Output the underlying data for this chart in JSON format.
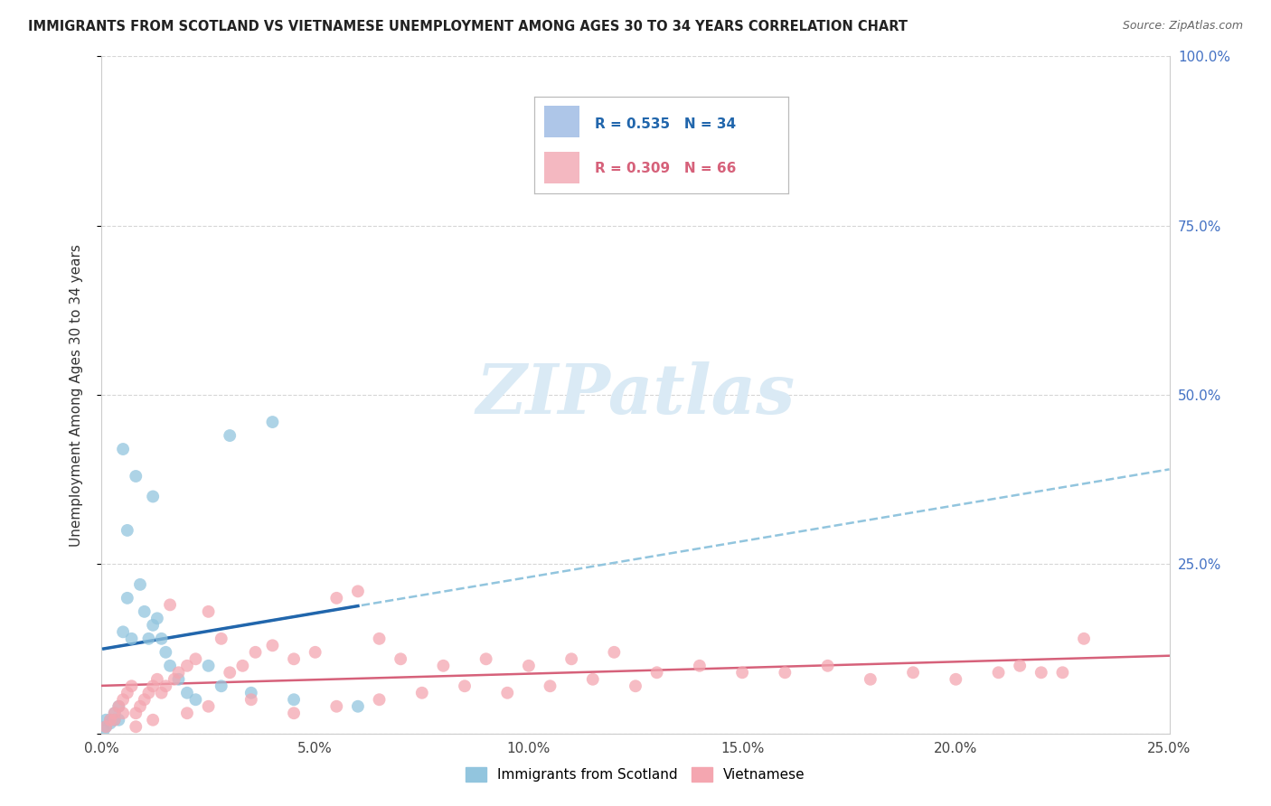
{
  "title": "IMMIGRANTS FROM SCOTLAND VS VIETNAMESE UNEMPLOYMENT AMONG AGES 30 TO 34 YEARS CORRELATION CHART",
  "source": "Source: ZipAtlas.com",
  "xlabel_bottom": "Immigrants from Scotland",
  "ylabel": "Unemployment Among Ages 30 to 34 years",
  "xlim": [
    0.0,
    0.25
  ],
  "ylim": [
    0.0,
    1.0
  ],
  "xticks": [
    0.0,
    0.05,
    0.1,
    0.15,
    0.2,
    0.25
  ],
  "xtick_labels": [
    "0.0%",
    "5.0%",
    "10.0%",
    "15.0%",
    "20.0%",
    "25.0%"
  ],
  "yticks": [
    0.0,
    0.25,
    0.5,
    0.75,
    1.0
  ],
  "ytick_labels_left": [
    "0.0%",
    "25.0%",
    "50.0%",
    "75.0%",
    "100.0%"
  ],
  "ytick_labels_right": [
    "",
    "25.0%",
    "50.0%",
    "75.0%",
    "100.0%"
  ],
  "scotland_color": "#92c5de",
  "scottish_line_color": "#2166ac",
  "scottish_line_dashed_color": "#92c5de",
  "vietnamese_color": "#f4a6b0",
  "vietnamese_line_color": "#d6617a",
  "R_scotland": 0.535,
  "N_scotland": 34,
  "R_vietnamese": 0.309,
  "N_vietnamese": 66,
  "watermark": "ZIPatlas",
  "watermark_color": "#daeaf5",
  "scotland_points_x": [
    0.0005,
    0.001,
    0.001,
    0.002,
    0.002,
    0.003,
    0.003,
    0.004,
    0.004,
    0.005,
    0.005,
    0.006,
    0.006,
    0.007,
    0.008,
    0.009,
    0.01,
    0.011,
    0.012,
    0.013,
    0.014,
    0.015,
    0.016,
    0.018,
    0.02,
    0.022,
    0.025,
    0.028,
    0.03,
    0.035,
    0.04,
    0.045,
    0.06,
    0.012
  ],
  "scotland_points_y": [
    0.005,
    0.01,
    0.02,
    0.02,
    0.015,
    0.03,
    0.02,
    0.02,
    0.04,
    0.42,
    0.15,
    0.2,
    0.3,
    0.14,
    0.38,
    0.22,
    0.18,
    0.14,
    0.16,
    0.17,
    0.14,
    0.12,
    0.1,
    0.08,
    0.06,
    0.05,
    0.1,
    0.07,
    0.44,
    0.06,
    0.46,
    0.05,
    0.04,
    0.35
  ],
  "vietnamese_points_x": [
    0.001,
    0.002,
    0.003,
    0.004,
    0.005,
    0.006,
    0.007,
    0.008,
    0.009,
    0.01,
    0.011,
    0.012,
    0.013,
    0.014,
    0.015,
    0.016,
    0.017,
    0.018,
    0.02,
    0.022,
    0.025,
    0.028,
    0.03,
    0.033,
    0.036,
    0.04,
    0.045,
    0.05,
    0.055,
    0.06,
    0.065,
    0.07,
    0.08,
    0.09,
    0.1,
    0.11,
    0.12,
    0.13,
    0.14,
    0.15,
    0.16,
    0.17,
    0.18,
    0.19,
    0.2,
    0.21,
    0.215,
    0.22,
    0.225,
    0.23,
    0.003,
    0.005,
    0.008,
    0.012,
    0.02,
    0.025,
    0.035,
    0.045,
    0.055,
    0.065,
    0.075,
    0.085,
    0.095,
    0.105,
    0.115,
    0.125
  ],
  "vietnamese_points_y": [
    0.01,
    0.02,
    0.03,
    0.04,
    0.05,
    0.06,
    0.07,
    0.03,
    0.04,
    0.05,
    0.06,
    0.07,
    0.08,
    0.06,
    0.07,
    0.19,
    0.08,
    0.09,
    0.1,
    0.11,
    0.18,
    0.14,
    0.09,
    0.1,
    0.12,
    0.13,
    0.11,
    0.12,
    0.2,
    0.21,
    0.14,
    0.11,
    0.1,
    0.11,
    0.1,
    0.11,
    0.12,
    0.09,
    0.1,
    0.09,
    0.09,
    0.1,
    0.08,
    0.09,
    0.08,
    0.09,
    0.1,
    0.09,
    0.09,
    0.14,
    0.02,
    0.03,
    0.01,
    0.02,
    0.03,
    0.04,
    0.05,
    0.03,
    0.04,
    0.05,
    0.06,
    0.07,
    0.06,
    0.07,
    0.08,
    0.07
  ],
  "background_color": "#ffffff",
  "grid_color": "#cccccc",
  "legend_box_color_scotland": "#aec6e8",
  "legend_box_color_vietnamese": "#f4b8c1",
  "legend_text_scotland": "R = 0.535   N = 34",
  "legend_text_vietnamese": "R = 0.309   N = 66"
}
